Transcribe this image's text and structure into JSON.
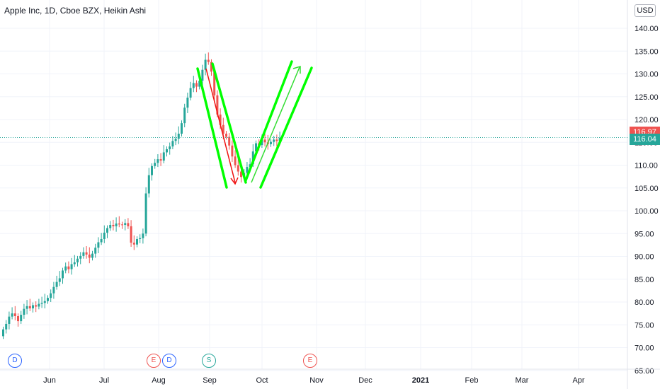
{
  "header": {
    "title": "Apple Inc, 1D, Cboe BZX, Heikin Ashi",
    "currency_button": "USD"
  },
  "chart_data": {
    "type": "candlestick",
    "title": "Apple Inc, 1D, Cboe BZX, Heikin Ashi",
    "ylim": [
      65,
      145
    ],
    "y_ticks": [
      "140.00",
      "135.00",
      "130.00",
      "125.00",
      "120.00",
      "115.00",
      "110.00",
      "105.00",
      "100.00",
      "95.00",
      "90.00",
      "85.00",
      "80.00",
      "75.00",
      "70.00",
      "65.00"
    ],
    "x_labels": [
      "Jun",
      "Jul",
      "Aug",
      "Sep",
      "Oct",
      "Nov",
      "Dec",
      "2021",
      "Feb",
      "Mar",
      "Apr"
    ],
    "x_labels_bold": [
      "2021"
    ],
    "last_price": {
      "value": "116.04",
      "color": "#26a69a"
    },
    "prev_price": {
      "value": "116.97",
      "color": "#ef5350"
    },
    "colors": {
      "up": "#26a69a",
      "down": "#ef5350",
      "wedge": "#00ff00",
      "arrow_down": "#ef1010",
      "arrow_up": "#33dd33"
    },
    "candles_daily_close": [
      [
        72.5,
        74.0
      ],
      [
        74.0,
        75.2
      ],
      [
        75.2,
        76.8
      ],
      [
        76.8,
        77.5
      ],
      [
        77.5,
        76.9
      ],
      [
        76.9,
        75.8
      ],
      [
        75.8,
        77.2
      ],
      [
        77.2,
        78.5
      ],
      [
        78.5,
        79.1
      ],
      [
        79.1,
        78.6
      ],
      [
        78.6,
        79.3
      ],
      [
        79.3,
        79.0
      ],
      [
        79.0,
        79.6
      ],
      [
        79.6,
        79.8
      ],
      [
        79.8,
        80.2
      ],
      [
        80.2,
        80.9
      ],
      [
        80.9,
        81.9
      ],
      [
        81.9,
        83.3
      ],
      [
        83.3,
        84.4
      ],
      [
        84.4,
        85.2
      ],
      [
        85.2,
        86.9
      ],
      [
        86.9,
        87.8
      ],
      [
        87.8,
        87.2
      ],
      [
        87.2,
        88.3
      ],
      [
        88.3,
        88.7
      ],
      [
        88.7,
        89.5
      ],
      [
        89.5,
        90.1
      ],
      [
        90.1,
        90.9
      ],
      [
        90.9,
        90.4
      ],
      [
        90.4,
        89.7
      ],
      [
        89.7,
        90.6
      ],
      [
        90.6,
        91.9
      ],
      [
        91.9,
        93.1
      ],
      [
        93.1,
        93.8
      ],
      [
        93.8,
        95.2
      ],
      [
        95.2,
        96.2
      ],
      [
        96.2,
        96.9
      ],
      [
        96.9,
        96.6
      ],
      [
        96.6,
        97.2
      ],
      [
        97.2,
        97.0
      ],
      [
        97.0,
        96.9
      ],
      [
        96.9,
        97.3
      ],
      [
        97.3,
        96.6
      ],
      [
        96.6,
        93.0
      ],
      [
        93.0,
        92.6
      ],
      [
        92.6,
        93.8
      ],
      [
        93.8,
        94.0
      ],
      [
        94.0,
        95.0
      ],
      [
        95.0,
        103.8
      ],
      [
        103.8,
        107.8
      ],
      [
        107.8,
        109.8
      ],
      [
        109.8,
        110.5
      ],
      [
        110.5,
        111.3
      ],
      [
        111.3,
        111.0
      ],
      [
        111.0,
        112.8
      ],
      [
        112.8,
        113.5
      ],
      [
        113.5,
        114.1
      ],
      [
        114.1,
        115.3
      ],
      [
        115.3,
        115.8
      ],
      [
        115.8,
        116.9
      ],
      [
        116.9,
        119.2
      ],
      [
        119.2,
        122.6
      ],
      [
        122.6,
        124.8
      ],
      [
        124.8,
        126.9
      ],
      [
        126.9,
        128.0
      ],
      [
        128.0,
        127.2
      ],
      [
        127.2,
        128.5
      ],
      [
        128.5,
        130.9
      ],
      [
        130.9,
        133.1
      ],
      [
        133.1,
        132.6
      ],
      [
        132.6,
        130.5
      ],
      [
        130.5,
        125.3
      ],
      [
        125.3,
        121.1
      ],
      [
        121.1,
        118.8
      ],
      [
        118.8,
        116.9
      ],
      [
        116.9,
        116.2
      ],
      [
        116.2,
        114.3
      ],
      [
        114.3,
        111.9
      ],
      [
        111.9,
        110.0
      ],
      [
        110.0,
        108.6
      ],
      [
        108.6,
        107.4
      ],
      [
        107.4,
        108.3
      ],
      [
        108.3,
        109.6
      ],
      [
        109.6,
        110.2
      ],
      [
        110.2,
        113.0
      ],
      [
        113.0,
        114.8
      ],
      [
        114.8,
        114.4
      ],
      [
        114.4,
        115.6
      ],
      [
        115.6,
        115.0
      ],
      [
        115.0,
        114.6
      ],
      [
        114.6,
        115.1
      ],
      [
        115.1,
        115.6
      ],
      [
        115.6,
        115.3
      ],
      [
        115.3,
        116.0
      ]
    ]
  },
  "events": [
    {
      "label": "D",
      "kind": "dividend"
    },
    {
      "label": "E",
      "kind": "earnings"
    },
    {
      "label": "D",
      "kind": "dividend"
    },
    {
      "label": "S",
      "kind": "split"
    },
    {
      "label": "E",
      "kind": "earnings"
    }
  ]
}
